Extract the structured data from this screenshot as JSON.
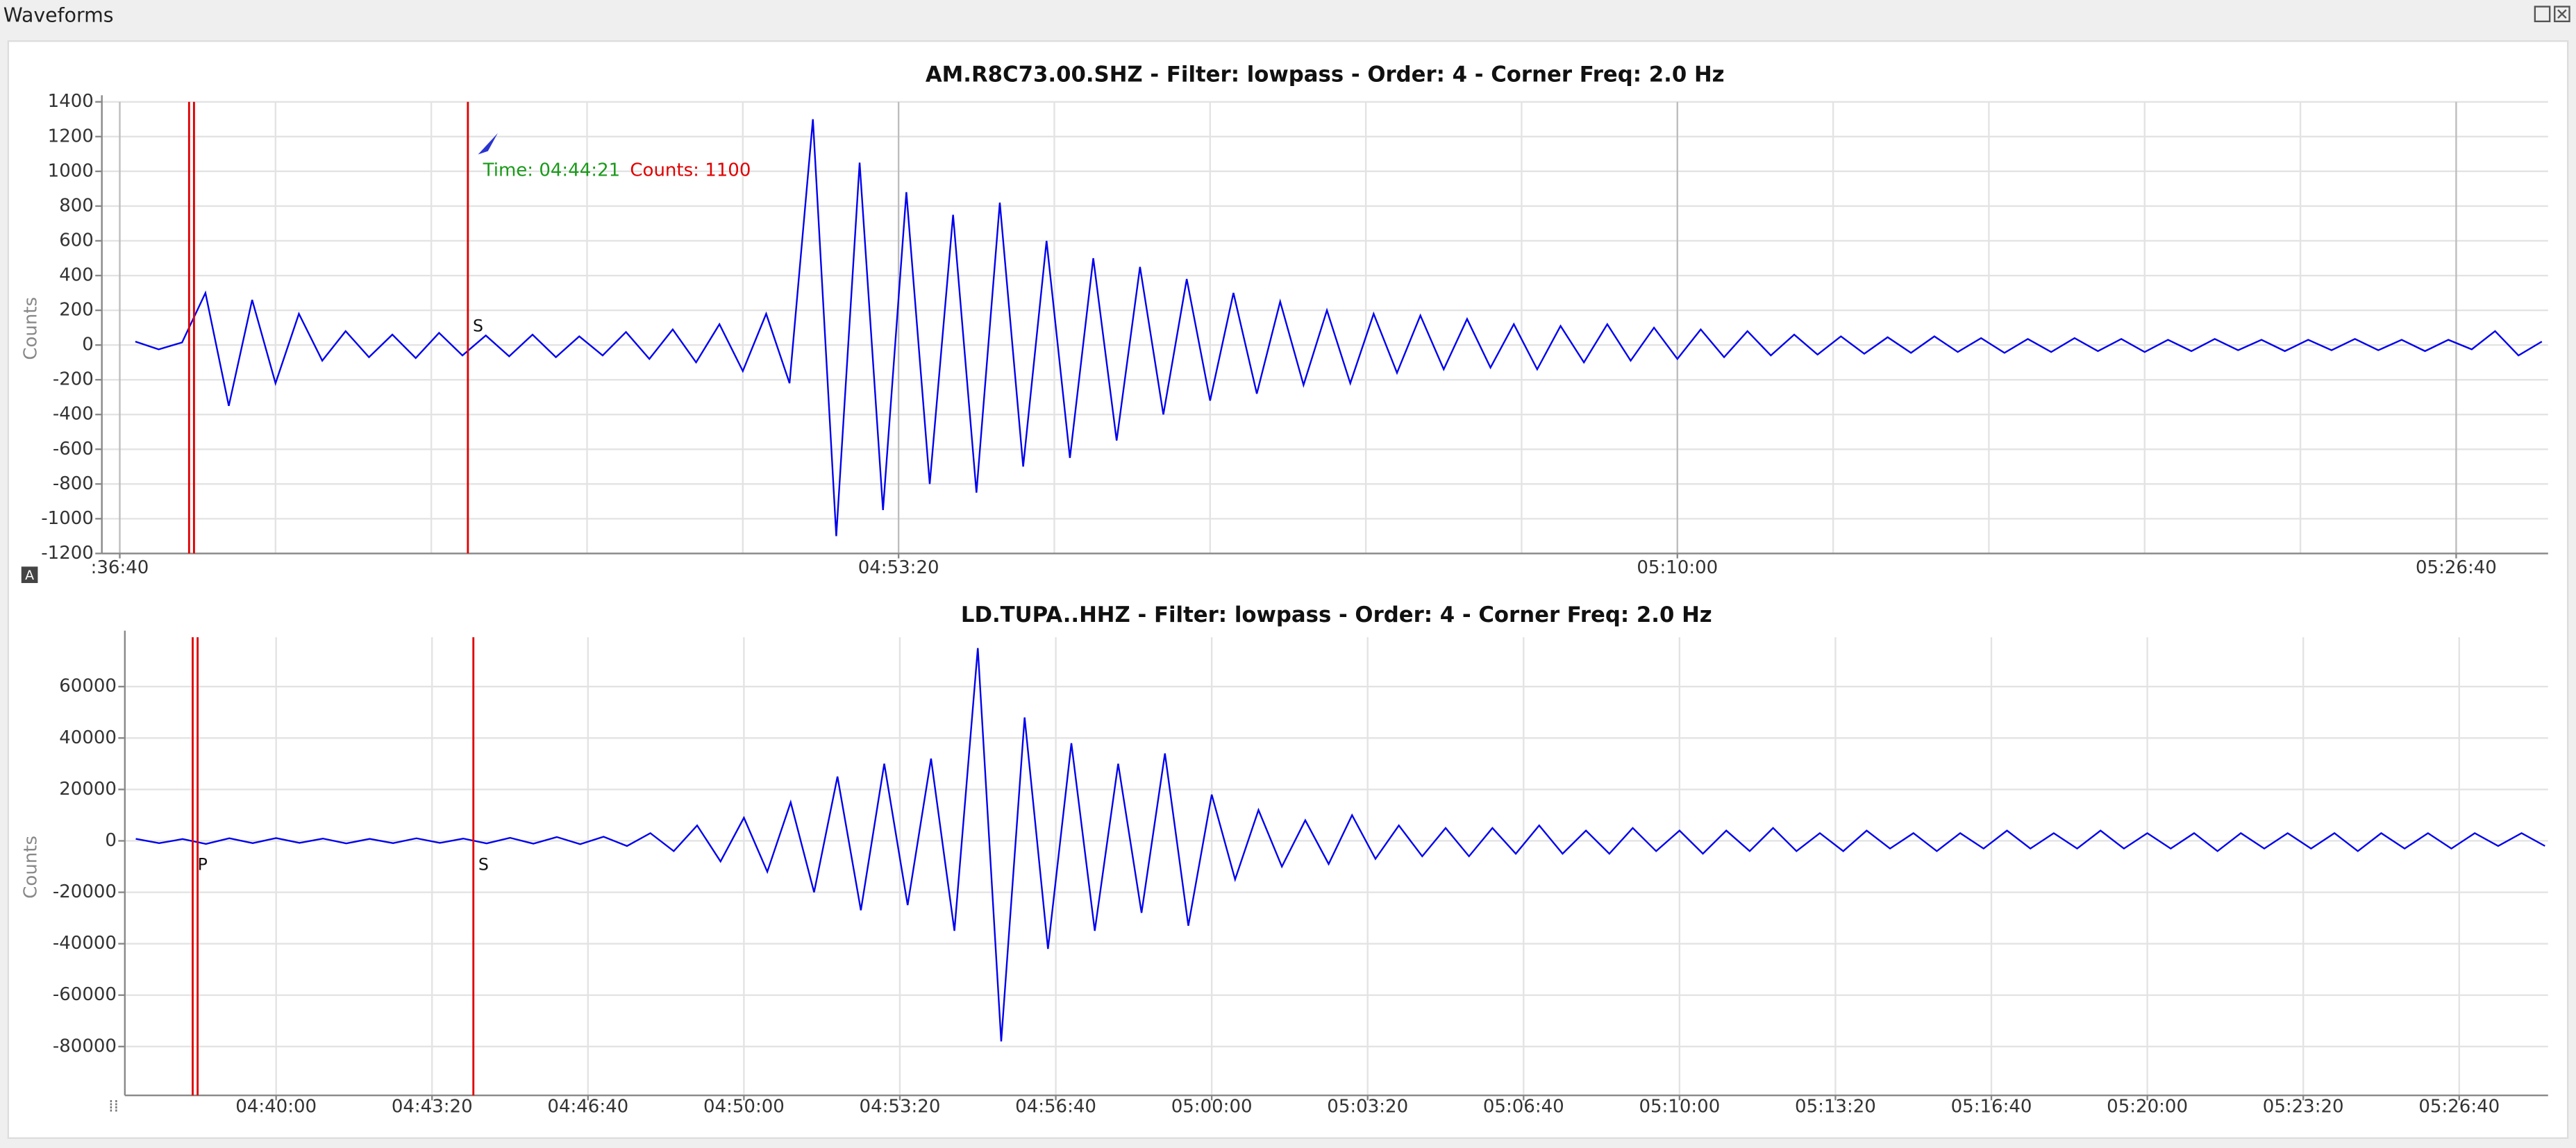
{
  "window": {
    "title": "Waveforms"
  },
  "chart_data": [
    {
      "type": "line",
      "title": "AM.R8C73.00.SHZ - Filter: lowpass - Order: 4 - Corner Freq: 2.0 Hz",
      "ylabel": "Counts",
      "color": "#0000ee",
      "xlim": [
        "04:36:17",
        "05:28:38"
      ],
      "xticks": [
        {
          "value": "04:36:40",
          "label": ":36:40"
        },
        "04:53:20",
        "05:10:00",
        "05:26:40"
      ],
      "xgrid": [
        "04:40:00",
        "04:43:20",
        "04:46:40",
        "04:50:00",
        "04:56:40",
        "05:00:00",
        "05:03:20",
        "05:06:40",
        "05:13:20",
        "05:16:40",
        "05:20:00",
        "05:23:20"
      ],
      "ylim": [
        -1200,
        1400
      ],
      "yticks": [
        -1200,
        -1000,
        -800,
        -600,
        -400,
        -200,
        0,
        200,
        400,
        600,
        800,
        1000,
        1200,
        1400
      ],
      "picks": [
        {
          "time": "04:38:09"
        },
        {
          "time": "04:44:07",
          "label": "S"
        }
      ],
      "annotation": {
        "time_label": "Time: 04:44:21",
        "counts_label": "Counts: 1100"
      },
      "x": [
        "04:37:00",
        "04:37:30",
        "04:38:00",
        "04:38:30",
        "04:39:00",
        "04:39:30",
        "04:40:00",
        "04:40:30",
        "04:41:00",
        "04:41:30",
        "04:42:00",
        "04:42:30",
        "04:43:00",
        "04:43:30",
        "04:44:00",
        "04:44:30",
        "04:45:00",
        "04:45:30",
        "04:46:00",
        "04:46:30",
        "04:47:00",
        "04:47:30",
        "04:48:00",
        "04:48:30",
        "04:49:00",
        "04:49:30",
        "04:50:00",
        "04:50:30",
        "04:51:00",
        "04:51:30",
        "04:52:00",
        "04:52:30",
        "04:53:00",
        "04:53:30",
        "04:54:00",
        "04:54:30",
        "04:55:00",
        "04:55:30",
        "04:56:00",
        "04:56:30",
        "04:57:00",
        "04:57:30",
        "04:58:00",
        "04:58:30",
        "04:59:00",
        "04:59:30",
        "05:00:00",
        "05:00:30",
        "05:01:00",
        "05:01:30",
        "05:02:00",
        "05:02:30",
        "05:03:00",
        "05:03:30",
        "05:04:00",
        "05:04:30",
        "05:05:00",
        "05:05:30",
        "05:06:00",
        "05:06:30",
        "05:07:00",
        "05:07:30",
        "05:08:00",
        "05:08:30",
        "05:09:00",
        "05:09:30",
        "05:10:00",
        "05:10:30",
        "05:11:00",
        "05:11:30",
        "05:12:00",
        "05:12:30",
        "05:13:00",
        "05:13:30",
        "05:14:00",
        "05:14:30",
        "05:15:00",
        "05:15:30",
        "05:16:00",
        "05:16:30",
        "05:17:00",
        "05:17:30",
        "05:18:00",
        "05:18:30",
        "05:19:00",
        "05:19:30",
        "05:20:00",
        "05:20:30",
        "05:21:00",
        "05:21:30",
        "05:22:00",
        "05:22:30",
        "05:23:00",
        "05:23:30",
        "05:24:00",
        "05:24:30",
        "05:25:00",
        "05:25:30",
        "05:26:00",
        "05:26:30",
        "05:27:00",
        "05:27:30",
        "05:28:00",
        "05:28:30"
      ],
      "values": [
        20,
        -25,
        15,
        300,
        -350,
        260,
        -220,
        180,
        -90,
        80,
        -70,
        60,
        -75,
        70,
        -60,
        55,
        -65,
        60,
        -70,
        50,
        -60,
        75,
        -80,
        90,
        -100,
        120,
        -150,
        180,
        -220,
        1300,
        -1100,
        1050,
        -950,
        880,
        -800,
        750,
        -850,
        820,
        -700,
        600,
        -650,
        500,
        -550,
        450,
        -400,
        380,
        -320,
        300,
        -280,
        250,
        -230,
        200,
        -220,
        180,
        -160,
        170,
        -140,
        150,
        -130,
        120,
        -140,
        110,
        -100,
        120,
        -90,
        100,
        -80,
        90,
        -70,
        80,
        -60,
        60,
        -55,
        50,
        -50,
        45,
        -45,
        50,
        -40,
        40,
        -45,
        35,
        -40,
        40,
        -35,
        35,
        -40,
        30,
        -35,
        35,
        -30,
        30,
        -35,
        30,
        -30,
        35,
        -30,
        30,
        -35,
        30,
        -25,
        80,
        -60,
        20
      ]
    },
    {
      "type": "line",
      "title": "LD.TUPA..HHZ - Filter: lowpass - Order: 4 - Corner Freq: 2.0 Hz",
      "ylabel": "Counts",
      "color": "#0000ee",
      "xlim": [
        "04:36:46",
        "05:28:34"
      ],
      "xticks": [
        "04:40:00",
        "04:43:20",
        "04:46:40",
        "04:50:00",
        "04:53:20",
        "04:56:40",
        "05:00:00",
        "05:03:20",
        "05:06:40",
        "05:10:00",
        "05:13:20",
        "05:16:40",
        "05:20:00",
        "05:23:20",
        "05:26:40"
      ],
      "ylim": [
        -99000,
        79200
      ],
      "yticks": [
        -80000,
        -60000,
        -40000,
        -20000,
        0,
        20000,
        40000,
        60000
      ],
      "picks": [
        {
          "time": "04:38:13",
          "label": "P"
        },
        {
          "time": "04:44:13",
          "label": "S"
        }
      ],
      "x": [
        "04:37:00",
        "04:37:30",
        "04:38:00",
        "04:38:30",
        "04:39:00",
        "04:39:30",
        "04:40:00",
        "04:40:30",
        "04:41:00",
        "04:41:30",
        "04:42:00",
        "04:42:30",
        "04:43:00",
        "04:43:30",
        "04:44:00",
        "04:44:30",
        "04:45:00",
        "04:45:30",
        "04:46:00",
        "04:46:30",
        "04:47:00",
        "04:47:30",
        "04:48:00",
        "04:48:30",
        "04:49:00",
        "04:49:30",
        "04:50:00",
        "04:50:30",
        "04:51:00",
        "04:51:30",
        "04:52:00",
        "04:52:30",
        "04:53:00",
        "04:53:30",
        "04:54:00",
        "04:54:30",
        "04:55:00",
        "04:55:30",
        "04:56:00",
        "04:56:30",
        "04:57:00",
        "04:57:30",
        "04:58:00",
        "04:58:30",
        "04:59:00",
        "04:59:30",
        "05:00:00",
        "05:00:30",
        "05:01:00",
        "05:01:30",
        "05:02:00",
        "05:02:30",
        "05:03:00",
        "05:03:30",
        "05:04:00",
        "05:04:30",
        "05:05:00",
        "05:05:30",
        "05:06:00",
        "05:06:30",
        "05:07:00",
        "05:07:30",
        "05:08:00",
        "05:08:30",
        "05:09:00",
        "05:09:30",
        "05:10:00",
        "05:10:30",
        "05:11:00",
        "05:11:30",
        "05:12:00",
        "05:12:30",
        "05:13:00",
        "05:13:30",
        "05:14:00",
        "05:14:30",
        "05:15:00",
        "05:15:30",
        "05:16:00",
        "05:16:30",
        "05:17:00",
        "05:17:30",
        "05:18:00",
        "05:18:30",
        "05:19:00",
        "05:19:30",
        "05:20:00",
        "05:20:30",
        "05:21:00",
        "05:21:30",
        "05:22:00",
        "05:22:30",
        "05:23:00",
        "05:23:30",
        "05:24:00",
        "05:24:30",
        "05:25:00",
        "05:25:30",
        "05:26:00",
        "05:26:30",
        "05:27:00",
        "05:27:30",
        "05:28:00",
        "05:28:30"
      ],
      "values": [
        800,
        -900,
        700,
        -1200,
        1000,
        -900,
        1100,
        -800,
        900,
        -1000,
        800,
        -900,
        1000,
        -800,
        900,
        -1000,
        1200,
        -1100,
        1500,
        -1300,
        1600,
        -2000,
        3000,
        -4000,
        6000,
        -8000,
        9000,
        -12000,
        15000,
        -20000,
        25000,
        -27000,
        30000,
        -25000,
        32000,
        -35000,
        75000,
        -78000,
        48000,
        -42000,
        38000,
        -35000,
        30000,
        -28000,
        34000,
        -33000,
        18000,
        -15000,
        12000,
        -10000,
        8000,
        -9000,
        10000,
        -7000,
        6000,
        -6000,
        5000,
        -6000,
        5000,
        -5000,
        6000,
        -5000,
        4000,
        -5000,
        5000,
        -4000,
        4000,
        -5000,
        4000,
        -4000,
        5000,
        -4000,
        3000,
        -4000,
        4000,
        -3000,
        3000,
        -4000,
        3000,
        -3000,
        4000,
        -3000,
        3000,
        -3000,
        4000,
        -3000,
        3000,
        -3000,
        3000,
        -4000,
        3000,
        -3000,
        3000,
        -3000,
        3000,
        -4000,
        3000,
        -3000,
        3000,
        -3000,
        3000,
        -2000,
        3000,
        -2000
      ]
    }
  ]
}
